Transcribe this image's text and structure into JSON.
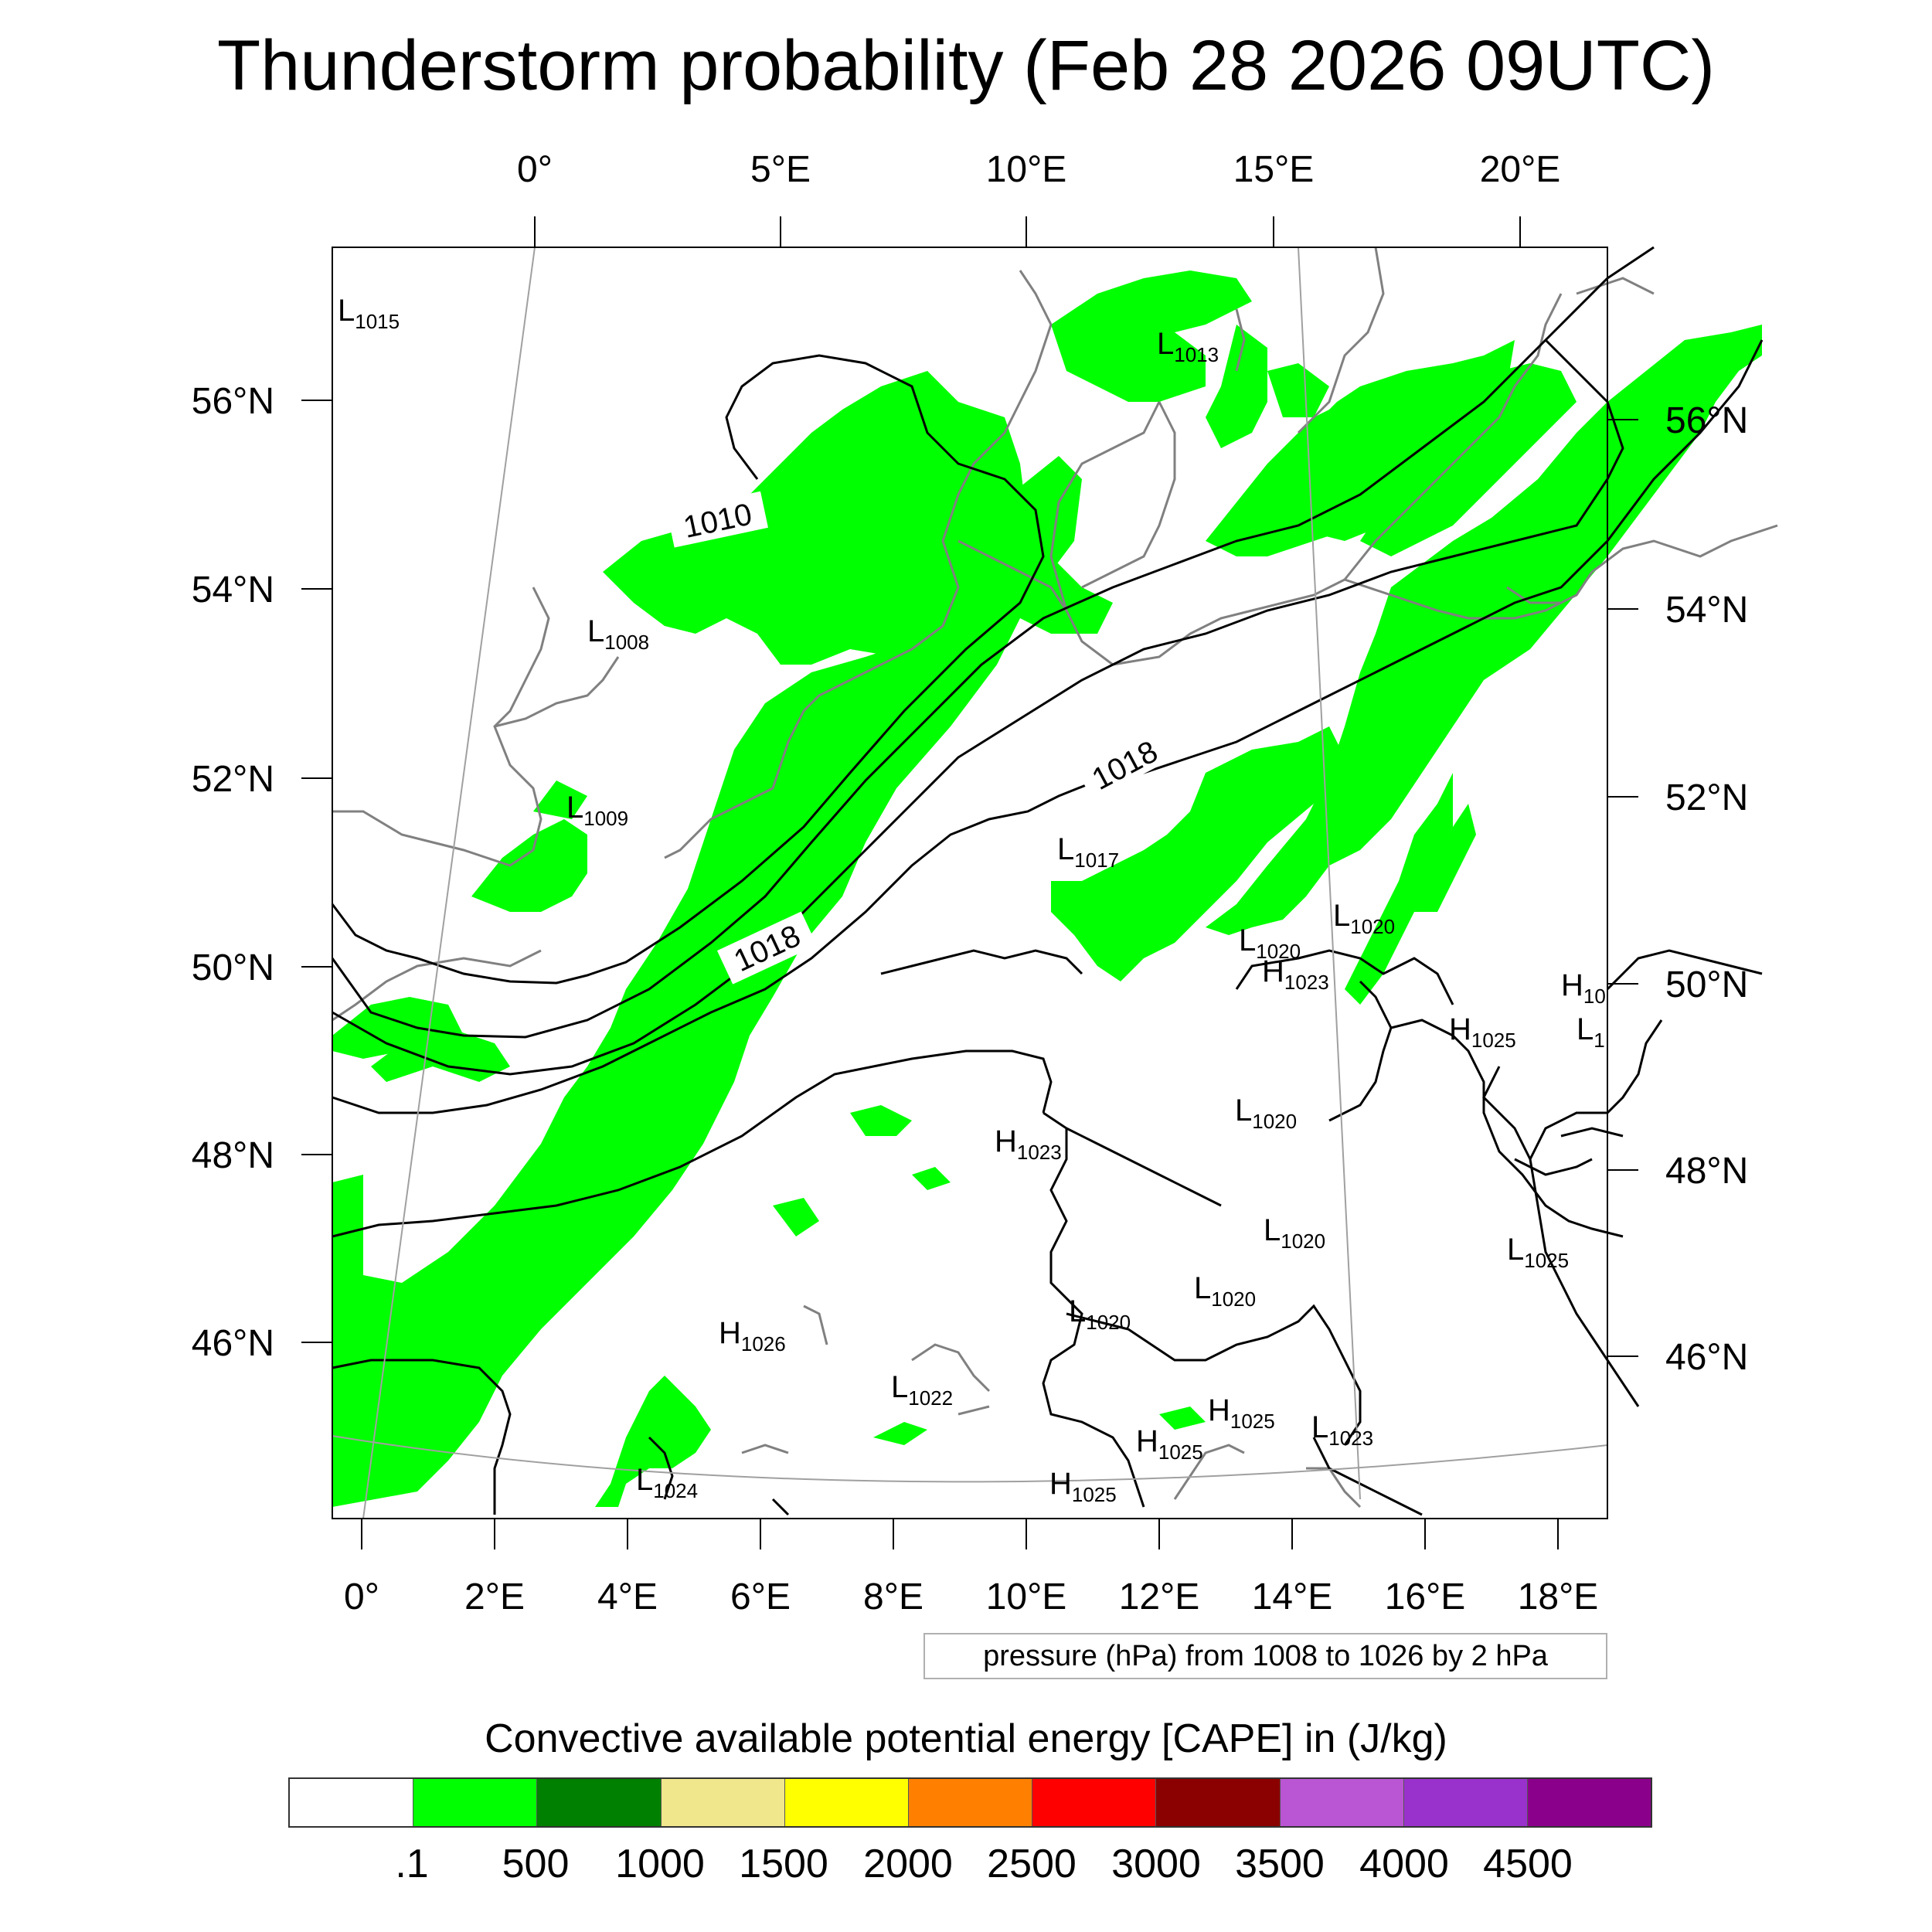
{
  "title": "Thunderstorm probability (Feb 28 2026 09UTC)",
  "info_box": "pressure (hPa) from 1008 to 1026 by 2 hPa",
  "colorbar": {
    "title": "Convective available potential energy [CAPE] in (J/kg)",
    "colors": [
      "#ffffff",
      "#00ff00",
      "#008000",
      "#f0e68c",
      "#ffff00",
      "#ff8000",
      "#ff0000",
      "#8b0000",
      "#ba55d3",
      "#9932cc",
      "#8b008b"
    ],
    "labels": [
      ".1",
      "500",
      "1000",
      "1500",
      "2000",
      "2500",
      "3000",
      "3500",
      "4000",
      "4500"
    ]
  },
  "axes": {
    "top": [
      "0°",
      "5°E",
      "10°E",
      "15°E",
      "20°E"
    ],
    "bottom": [
      "0°",
      "2°E",
      "4°E",
      "6°E",
      "8°E",
      "10°E",
      "12°E",
      "14°E",
      "16°E",
      "18°E"
    ],
    "left": [
      "56°N",
      "54°N",
      "52°N",
      "50°N",
      "48°N",
      "46°N"
    ],
    "right": [
      "56°N",
      "54°N",
      "52°N",
      "50°N",
      "48°N",
      "46°N"
    ]
  },
  "contour_labels": [
    "1010",
    "1018",
    "1018"
  ],
  "pressure_centers": [
    {
      "kind": "L",
      "value": "1015"
    },
    {
      "kind": "L",
      "value": "1013"
    },
    {
      "kind": "L",
      "value": "1008"
    },
    {
      "kind": "L",
      "value": "1009"
    },
    {
      "kind": "L",
      "value": "1017"
    },
    {
      "kind": "L",
      "value": "1020"
    },
    {
      "kind": "L",
      "value": "1020"
    },
    {
      "kind": "H",
      "value": "1023"
    },
    {
      "kind": "H",
      "value": "10"
    },
    {
      "kind": "H",
      "value": "1025"
    },
    {
      "kind": "L",
      "value": "1"
    },
    {
      "kind": "L",
      "value": "1020"
    },
    {
      "kind": "H",
      "value": "1023"
    },
    {
      "kind": "L",
      "value": "1020"
    },
    {
      "kind": "L",
      "value": "1025"
    },
    {
      "kind": "L",
      "value": "1020"
    },
    {
      "kind": "L",
      "value": "1020"
    },
    {
      "kind": "H",
      "value": "1026"
    },
    {
      "kind": "L",
      "value": "1022"
    },
    {
      "kind": "H",
      "value": "1025"
    },
    {
      "kind": "H",
      "value": "1025"
    },
    {
      "kind": "L",
      "value": "1023"
    },
    {
      "kind": "L",
      "value": "1024"
    },
    {
      "kind": "H",
      "value": "1025"
    }
  ]
}
